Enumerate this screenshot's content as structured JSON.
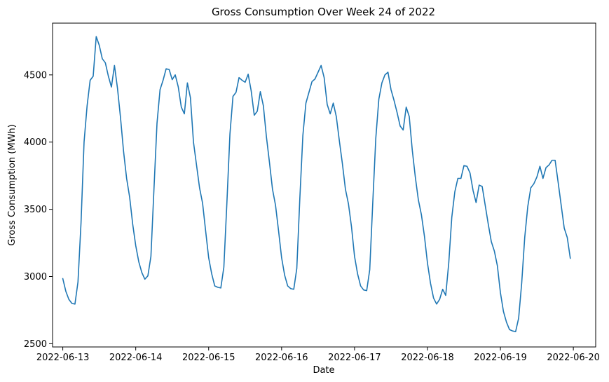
{
  "chart_data": {
    "type": "line",
    "title": "Gross Consumption Over Week 24 of 2022",
    "xlabel": "Date",
    "ylabel": "Gross Consumption (MWh)",
    "x_ticks": [
      "2022-06-13",
      "2022-06-14",
      "2022-06-15",
      "2022-06-16",
      "2022-06-17",
      "2022-06-18",
      "2022-06-19",
      "2022-06-20"
    ],
    "y_ticks": [
      2500,
      3000,
      3500,
      4000,
      4500
    ],
    "xlim": [
      "2022-06-12T20:38",
      "2022-06-20T07:21"
    ],
    "ylim": [
      2476,
      4885
    ],
    "grid": false,
    "legend": "none",
    "line_color": "#1f77b4",
    "series": [
      {
        "x": [
          "2022-06-13T00:00",
          "2022-06-13T01:00",
          "2022-06-13T02:00",
          "2022-06-13T03:00",
          "2022-06-13T04:00",
          "2022-06-13T05:00",
          "2022-06-13T06:00",
          "2022-06-13T07:00",
          "2022-06-13T08:00",
          "2022-06-13T09:00",
          "2022-06-13T10:00",
          "2022-06-13T11:00",
          "2022-06-13T12:00",
          "2022-06-13T13:00",
          "2022-06-13T14:00",
          "2022-06-13T15:00",
          "2022-06-13T16:00",
          "2022-06-13T17:00",
          "2022-06-13T18:00",
          "2022-06-13T19:00",
          "2022-06-13T20:00",
          "2022-06-13T21:00",
          "2022-06-13T22:00",
          "2022-06-13T23:00",
          "2022-06-14T00:00",
          "2022-06-14T01:00",
          "2022-06-14T02:00",
          "2022-06-14T03:00",
          "2022-06-14T04:00",
          "2022-06-14T05:00",
          "2022-06-14T06:00",
          "2022-06-14T07:00",
          "2022-06-14T08:00",
          "2022-06-14T09:00",
          "2022-06-14T10:00",
          "2022-06-14T11:00",
          "2022-06-14T12:00",
          "2022-06-14T13:00",
          "2022-06-14T14:00",
          "2022-06-14T15:00",
          "2022-06-14T16:00",
          "2022-06-14T17:00",
          "2022-06-14T18:00",
          "2022-06-14T19:00",
          "2022-06-14T20:00",
          "2022-06-14T21:00",
          "2022-06-14T22:00",
          "2022-06-14T23:00",
          "2022-06-15T00:00",
          "2022-06-15T01:00",
          "2022-06-15T02:00",
          "2022-06-15T03:00",
          "2022-06-15T04:00",
          "2022-06-15T05:00",
          "2022-06-15T06:00",
          "2022-06-15T07:00",
          "2022-06-15T08:00",
          "2022-06-15T09:00",
          "2022-06-15T10:00",
          "2022-06-15T11:00",
          "2022-06-15T12:00",
          "2022-06-15T13:00",
          "2022-06-15T14:00",
          "2022-06-15T15:00",
          "2022-06-15T16:00",
          "2022-06-15T17:00",
          "2022-06-15T18:00",
          "2022-06-15T19:00",
          "2022-06-15T20:00",
          "2022-06-15T21:00",
          "2022-06-15T22:00",
          "2022-06-15T23:00",
          "2022-06-16T00:00",
          "2022-06-16T01:00",
          "2022-06-16T02:00",
          "2022-06-16T03:00",
          "2022-06-16T04:00",
          "2022-06-16T05:00",
          "2022-06-16T06:00",
          "2022-06-16T07:00",
          "2022-06-16T08:00",
          "2022-06-16T09:00",
          "2022-06-16T10:00",
          "2022-06-16T11:00",
          "2022-06-16T12:00",
          "2022-06-16T13:00",
          "2022-06-16T14:00",
          "2022-06-16T15:00",
          "2022-06-16T16:00",
          "2022-06-16T17:00",
          "2022-06-16T18:00",
          "2022-06-16T19:00",
          "2022-06-16T20:00",
          "2022-06-16T21:00",
          "2022-06-16T22:00",
          "2022-06-16T23:00",
          "2022-06-17T00:00",
          "2022-06-17T01:00",
          "2022-06-17T02:00",
          "2022-06-17T03:00",
          "2022-06-17T04:00",
          "2022-06-17T05:00",
          "2022-06-17T06:00",
          "2022-06-17T07:00",
          "2022-06-17T08:00",
          "2022-06-17T09:00",
          "2022-06-17T10:00",
          "2022-06-17T11:00",
          "2022-06-17T12:00",
          "2022-06-17T13:00",
          "2022-06-17T14:00",
          "2022-06-17T15:00",
          "2022-06-17T16:00",
          "2022-06-17T17:00",
          "2022-06-17T18:00",
          "2022-06-17T19:00",
          "2022-06-17T20:00",
          "2022-06-17T21:00",
          "2022-06-17T22:00",
          "2022-06-17T23:00",
          "2022-06-18T00:00",
          "2022-06-18T01:00",
          "2022-06-18T02:00",
          "2022-06-18T03:00",
          "2022-06-18T04:00",
          "2022-06-18T05:00",
          "2022-06-18T06:00",
          "2022-06-18T07:00",
          "2022-06-18T08:00",
          "2022-06-18T09:00",
          "2022-06-18T10:00",
          "2022-06-18T11:00",
          "2022-06-18T12:00",
          "2022-06-18T13:00",
          "2022-06-18T14:00",
          "2022-06-18T15:00",
          "2022-06-18T16:00",
          "2022-06-18T17:00",
          "2022-06-18T18:00",
          "2022-06-18T19:00",
          "2022-06-18T20:00",
          "2022-06-18T21:00",
          "2022-06-18T22:00",
          "2022-06-18T23:00",
          "2022-06-19T00:00",
          "2022-06-19T01:00",
          "2022-06-19T02:00",
          "2022-06-19T03:00",
          "2022-06-19T04:00",
          "2022-06-19T05:00",
          "2022-06-19T06:00",
          "2022-06-19T07:00",
          "2022-06-19T08:00",
          "2022-06-19T09:00",
          "2022-06-19T10:00",
          "2022-06-19T11:00",
          "2022-06-19T12:00",
          "2022-06-19T13:00",
          "2022-06-19T14:00",
          "2022-06-19T15:00",
          "2022-06-19T16:00",
          "2022-06-19T17:00",
          "2022-06-19T18:00",
          "2022-06-19T19:00",
          "2022-06-19T20:00",
          "2022-06-19T21:00",
          "2022-06-19T22:00",
          "2022-06-19T23:00"
        ],
        "values": [
          2985,
          2890,
          2830,
          2800,
          2795,
          2960,
          3400,
          4000,
          4270,
          4460,
          4490,
          4785,
          4720,
          4620,
          4590,
          4490,
          4410,
          4570,
          4400,
          4180,
          3930,
          3730,
          3590,
          3390,
          3230,
          3110,
          3030,
          2980,
          3005,
          3150,
          3650,
          4140,
          4390,
          4460,
          4545,
          4540,
          4465,
          4500,
          4410,
          4260,
          4210,
          4440,
          4330,
          4000,
          3830,
          3660,
          3545,
          3340,
          3140,
          3020,
          2930,
          2920,
          2915,
          3070,
          3550,
          4060,
          4340,
          4370,
          4480,
          4460,
          4445,
          4505,
          4380,
          4200,
          4230,
          4375,
          4270,
          4040,
          3850,
          3650,
          3530,
          3340,
          3140,
          3010,
          2930,
          2910,
          2905,
          3060,
          3580,
          4050,
          4290,
          4370,
          4450,
          4470,
          4520,
          4570,
          4480,
          4280,
          4210,
          4290,
          4190,
          4010,
          3840,
          3650,
          3540,
          3370,
          3150,
          3020,
          2930,
          2900,
          2895,
          3050,
          3550,
          4030,
          4320,
          4440,
          4500,
          4520,
          4390,
          4310,
          4220,
          4120,
          4090,
          4260,
          4190,
          3940,
          3740,
          3570,
          3460,
          3300,
          3100,
          2950,
          2840,
          2795,
          2830,
          2905,
          2860,
          3100,
          3440,
          3630,
          3730,
          3730,
          3825,
          3820,
          3770,
          3640,
          3550,
          3680,
          3670,
          3530,
          3390,
          3260,
          3190,
          3080,
          2880,
          2740,
          2660,
          2605,
          2595,
          2590,
          2690,
          2950,
          3290,
          3520,
          3660,
          3690,
          3740,
          3820,
          3730,
          3810,
          3830,
          3865,
          3865,
          3700,
          3530,
          3360,
          3290,
          3135
        ]
      }
    ]
  }
}
